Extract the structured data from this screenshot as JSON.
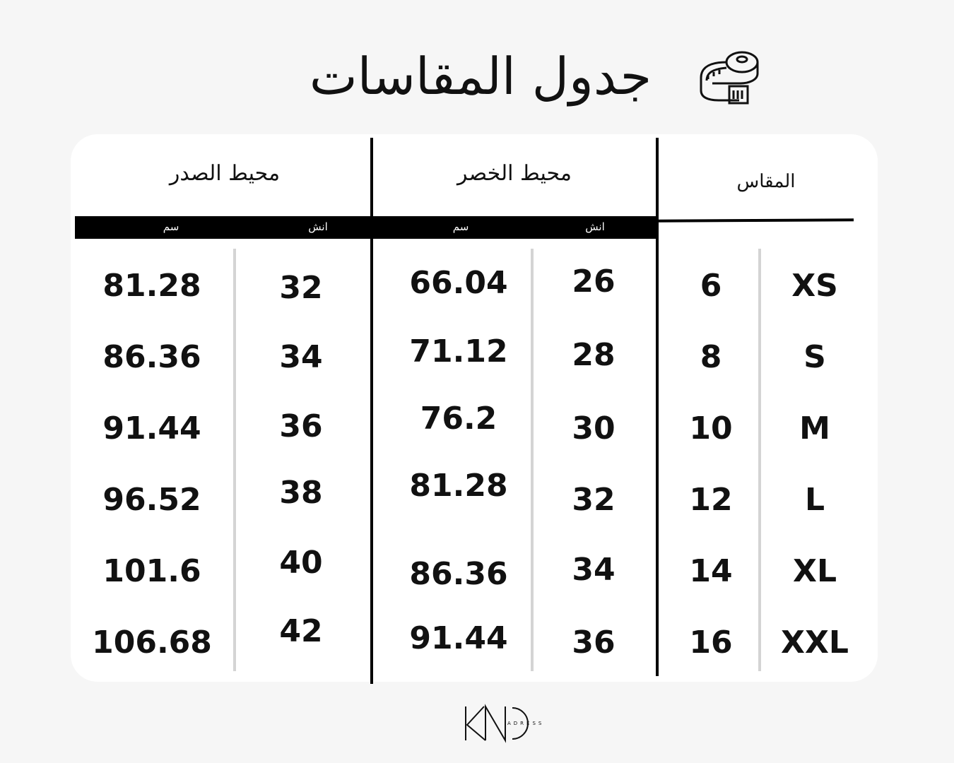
{
  "title": "جدول المقاسات",
  "title_icon": "measuring-tape-icon",
  "headers": {
    "size": "المقاس",
    "waist": "محيط الخصر",
    "chest": "محيط الصدر"
  },
  "units": {
    "inch": "انش",
    "cm": "سم"
  },
  "rows": [
    {
      "size": "XS",
      "number": "6",
      "waist_inch": "26",
      "waist_cm": "66.04",
      "chest_inch": "32",
      "chest_cm": "81.28"
    },
    {
      "size": "S",
      "number": "8",
      "waist_inch": "28",
      "waist_cm": "71.12",
      "chest_inch": "34",
      "chest_cm": "86.36"
    },
    {
      "size": "M",
      "number": "10",
      "waist_inch": "30",
      "waist_cm": "76.2",
      "chest_inch": "36",
      "chest_cm": "91.44"
    },
    {
      "size": "L",
      "number": "12",
      "waist_inch": "32",
      "waist_cm": "81.28",
      "chest_inch": "38",
      "chest_cm": "96.52"
    },
    {
      "size": "XL",
      "number": "14",
      "waist_inch": "34",
      "waist_cm": "86.36",
      "chest_inch": "40",
      "chest_cm": "101.6"
    },
    {
      "size": "XXL",
      "number": "16",
      "waist_inch": "36",
      "waist_cm": "91.44",
      "chest_inch": "42",
      "chest_cm": "106.68"
    }
  ],
  "logo": {
    "main": "KNO",
    "sub": "ADRESS"
  }
}
